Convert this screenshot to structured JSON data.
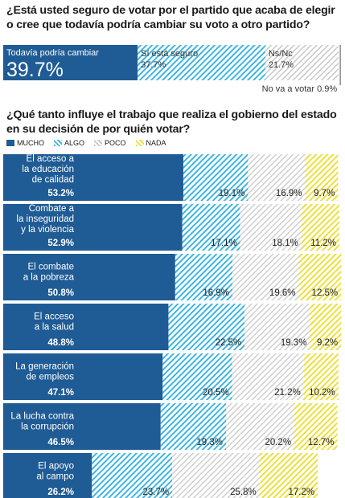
{
  "question1": "¿Está usted seguro de votar por el partido que acaba de elegir o cree que todavía podría cambiar su voto a otro partido?",
  "question2": "¿Qué tanto influye el trabajo que realiza el gobierno del estado en su decisión de por quién votar?",
  "colors": {
    "mucho": "#1f5b94",
    "algo": "#3fb6e2",
    "poco": "#c8c8c8",
    "nada": "#ece03a"
  },
  "chart_data": [
    {
      "type": "bar",
      "orientation": "horizontal-stacked",
      "segments": [
        {
          "label": "Todavía podría cambiar",
          "value": 39.7,
          "display": "39.7%"
        },
        {
          "label": "Sí está seguro",
          "value": 37.7,
          "display": "37.7%"
        },
        {
          "label": "Ns/Nc",
          "value": 21.7,
          "display": "21.7%"
        },
        {
          "label": "No va a votar",
          "value": 0.9,
          "display": "0.9%"
        }
      ]
    },
    {
      "type": "bar",
      "orientation": "horizontal-stacked",
      "legend": [
        "MUCHO",
        "ALGO",
        "POCO",
        "NADA"
      ],
      "categories": [
        [
          "El acceso a",
          "la educación",
          "de calidad"
        ],
        [
          "Combate a",
          "la inseguridad",
          "y la violencia"
        ],
        [
          "El combate",
          "a la pobreza"
        ],
        [
          "El acceso",
          "a la salud"
        ],
        [
          "La generación",
          "de empleos"
        ],
        [
          "La lucha contra",
          "la corrupción"
        ],
        [
          "El apoyo",
          "al campo"
        ]
      ],
      "series": [
        {
          "name": "MUCHO",
          "values": [
            53.2,
            52.9,
            50.8,
            48.8,
            47.1,
            46.5,
            26.2
          ],
          "labels": [
            "53.2%",
            "52.9%",
            "50.8%",
            "48.8%",
            "47.1%",
            "46.5%",
            "26.2%"
          ]
        },
        {
          "name": "ALGO",
          "values": [
            19.1,
            17.1,
            16.9,
            22.5,
            20.5,
            19.3,
            23.7
          ],
          "labels": [
            "19.1%",
            "17.1%",
            "16.9%",
            "22.5%",
            "20.5%",
            "19.3%",
            "23.7%"
          ]
        },
        {
          "name": "POCO",
          "values": [
            16.9,
            18.1,
            19.6,
            19.3,
            21.2,
            20.2,
            25.8
          ],
          "labels": [
            "16.9%",
            "18.1%",
            "19.6%",
            "19.3%",
            "21.2%",
            "20.2%",
            "25.8%"
          ]
        },
        {
          "name": "NADA",
          "values": [
            9.7,
            11.2,
            12.5,
            9.2,
            10.2,
            12.7,
            17.2
          ],
          "labels": [
            "9.7%",
            "11.2%",
            "12.5%",
            "9.2%",
            "10.2%",
            "12.7%",
            "17.2%"
          ]
        }
      ]
    }
  ]
}
